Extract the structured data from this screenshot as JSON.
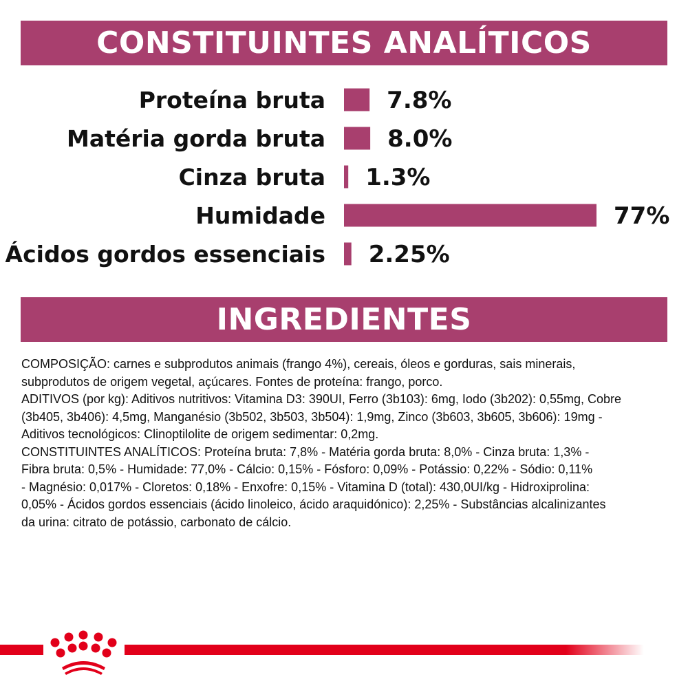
{
  "sections": {
    "analytics_title": "CONSTITUINTES ANALÍTICOS",
    "ingredients_title": "INGREDIENTES"
  },
  "chart_data": {
    "type": "bar",
    "orientation": "horizontal",
    "categories": [
      "Proteína bruta",
      "Matéria gorda bruta",
      "Cinza bruta",
      "Humidade",
      "Ácidos gordos essenciais"
    ],
    "values": [
      7.8,
      8.0,
      1.3,
      77,
      2.25
    ],
    "data_labels": [
      "7.8%",
      "8.0%",
      "1.3%",
      "77%",
      "2.25%"
    ],
    "unit": "%",
    "bar_color": "#a83f6e",
    "grid": false
  },
  "ingredients": {
    "lines": [
      "COMPOSIÇÃO: carnes e subprodutos animais (frango 4%), cereais, óleos e gorduras, sais minerais,",
      "subprodutos de origem vegetal, açúcares. Fontes de proteína: frango, porco.",
      "ADITIVOS (por kg): Aditivos nutritivos: Vitamina D3: 390UI, Ferro (3b103): 6mg, Iodo (3b202): 0,55mg, Cobre",
      "(3b405, 3b406): 4,5mg, Manganésio (3b502, 3b503, 3b504): 1,9mg, Zinco (3b603, 3b605, 3b606): 19mg -",
      "Aditivos tecnológicos: Clinoptilolite de origem sedimentar: 0,2mg.",
      "CONSTITUINTES ANALÍTICOS: Proteína bruta: 7,8% - Matéria gorda bruta: 8,0% - Cinza bruta: 1,3% -",
      "Fibra bruta: 0,5% - Humidade: 77,0% - Cálcio: 0,15% - Fósforo: 0,09% - Potássio: 0,22% - Sódio: 0,11%",
      "- Magnésio: 0,017% - Cloretos: 0,18% - Enxofre: 0,15% - Vitamina D (total): 430,0UI/kg - Hidroxiprolina:",
      "0,05% - Ácidos gordos essenciais (ácido linoleico, ácido araquidónico): 2,25% - Substâncias alcalinizantes",
      "da urina: citrato de potássio, carbonato de cálcio."
    ]
  },
  "brand": {
    "logo": "Royal Canin crown",
    "color": "#e2001a"
  }
}
